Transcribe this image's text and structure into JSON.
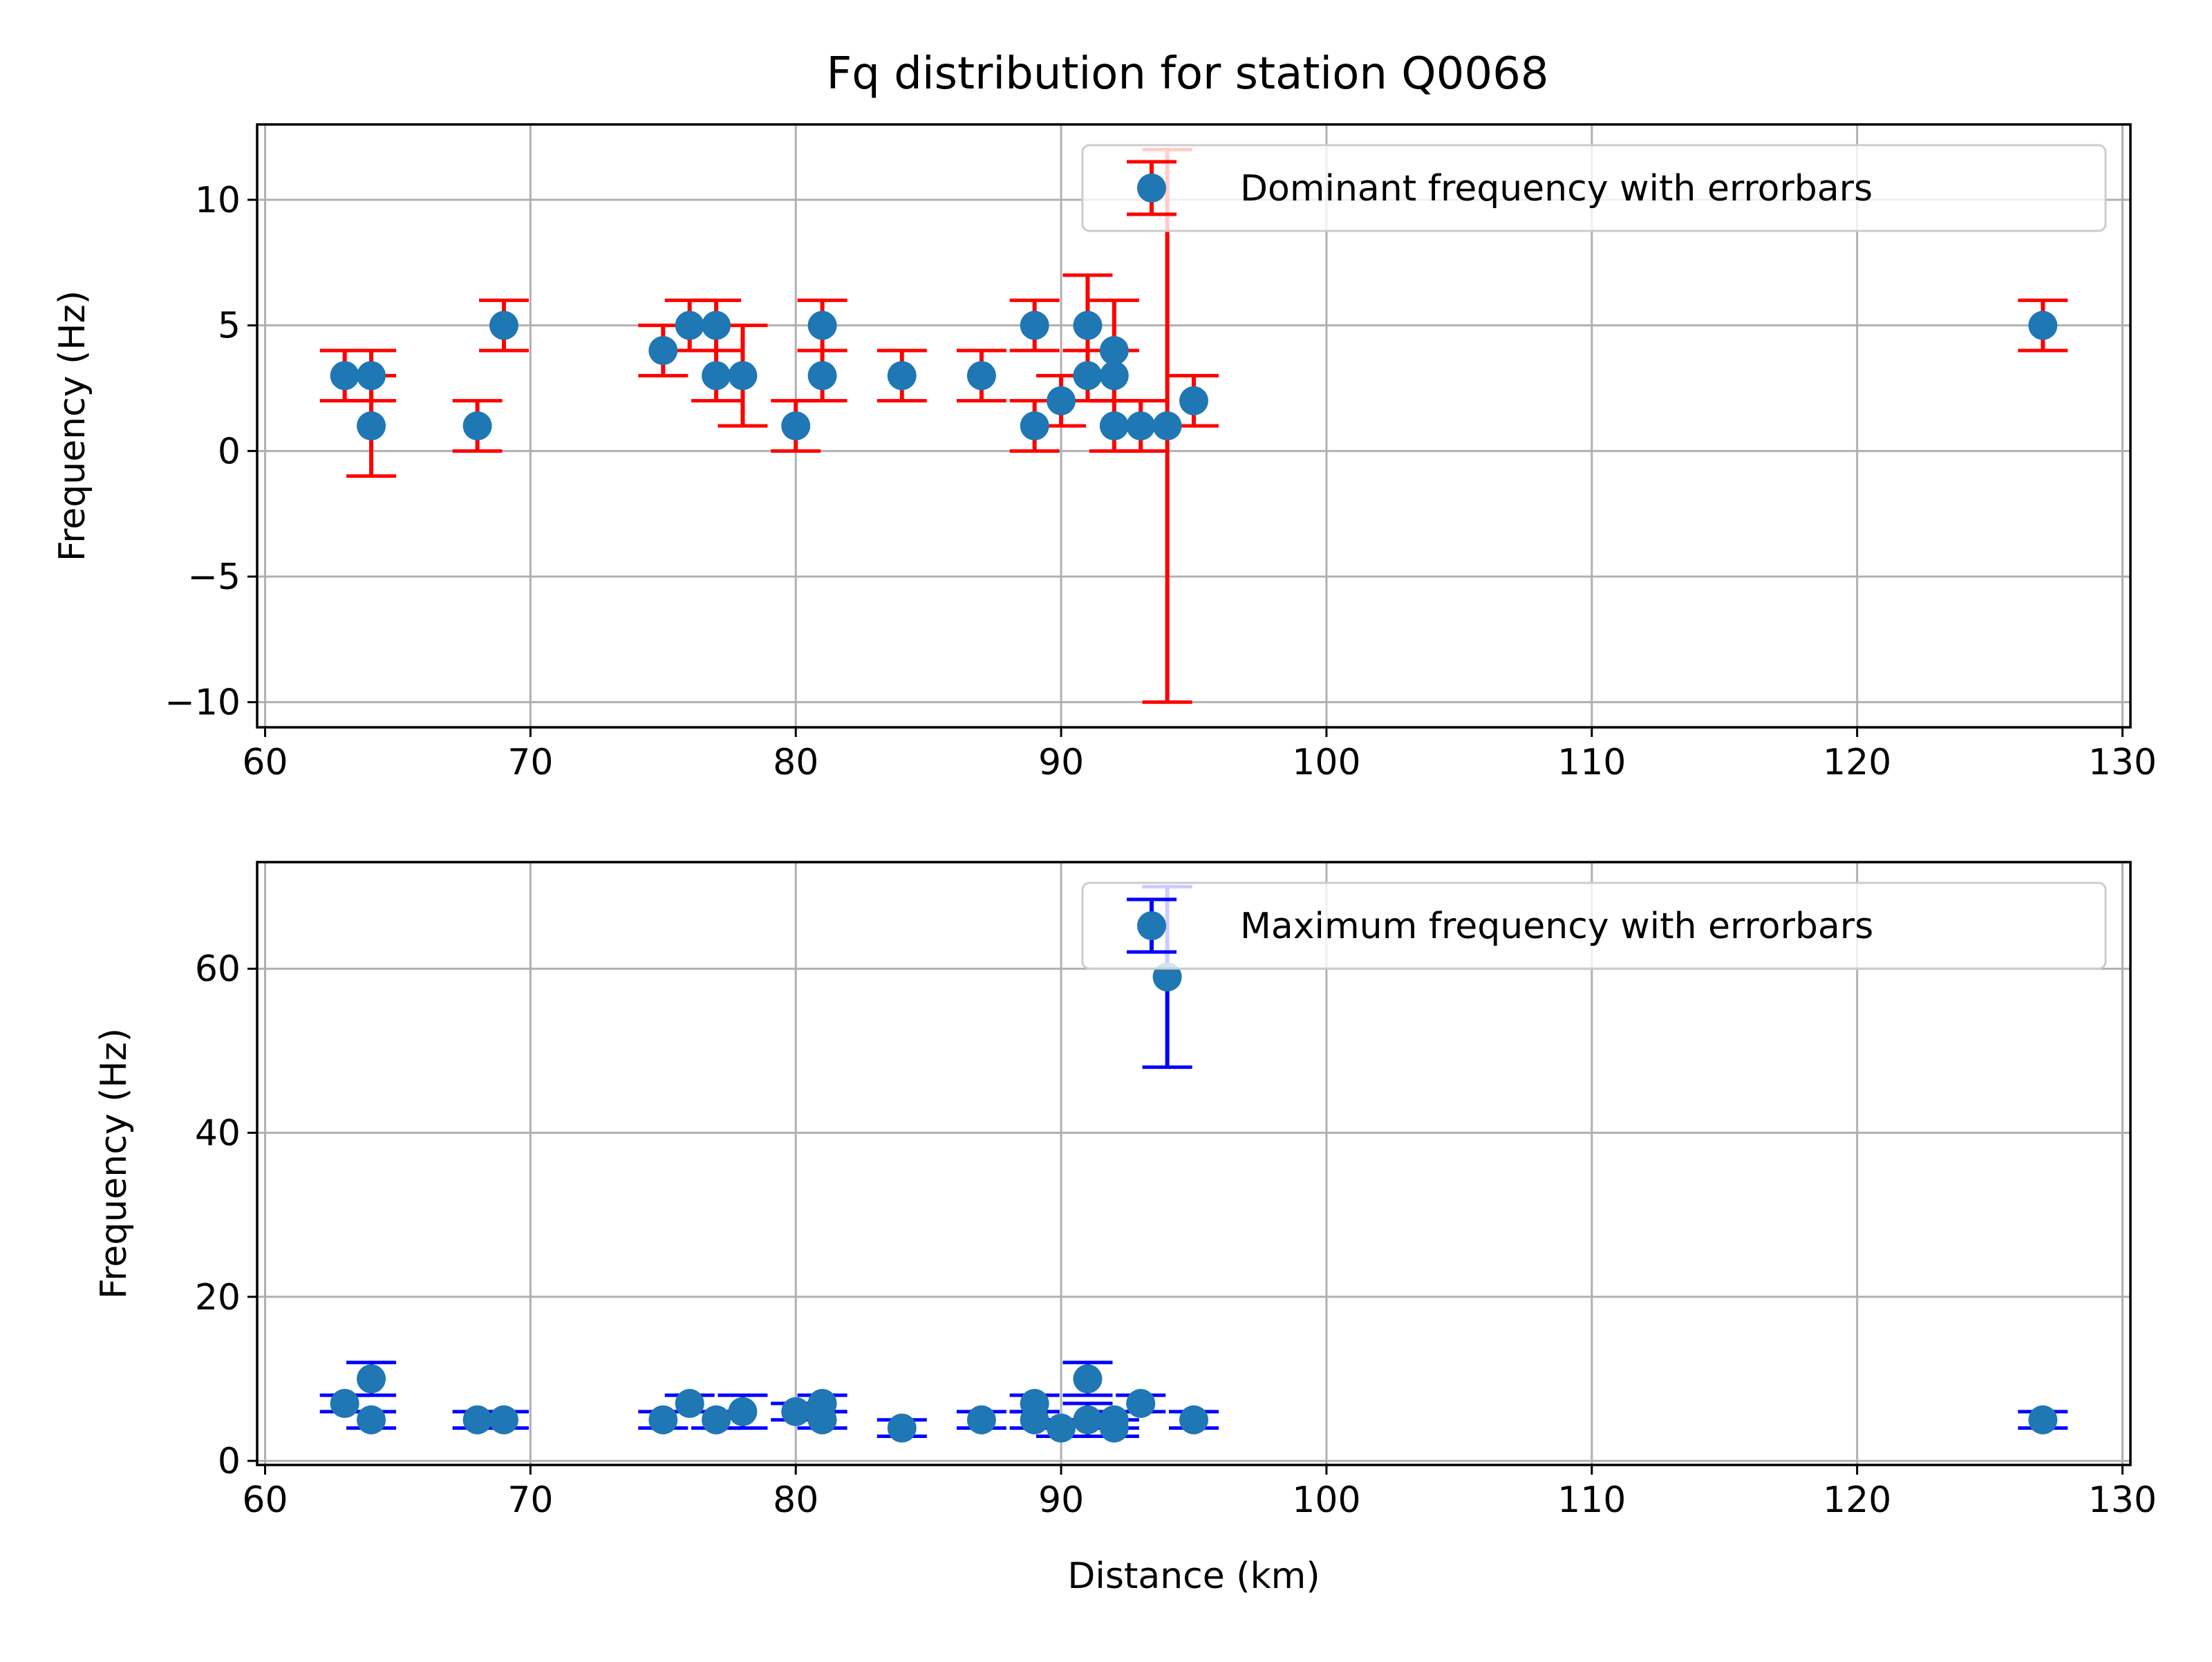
{
  "figure": {
    "title": "Fq distribution for station Q0068"
  },
  "chart_data": [
    {
      "type": "scatter",
      "subtype": "errorbar",
      "ylabel": "Frequency (Hz)",
      "xlabel": "",
      "xlim": [
        59.7,
        130.3
      ],
      "ylim": [
        -11.0,
        13.0
      ],
      "xticks": [
        60,
        70,
        80,
        90,
        100,
        110,
        120,
        130
      ],
      "yticks": [
        -10,
        -5,
        0,
        5,
        10
      ],
      "ytick_labels": [
        "−10",
        "−5",
        "0",
        "5",
        "10"
      ],
      "grid": true,
      "legend_position": "top-right",
      "marker_color": "#1f77b4",
      "errorbar_color": "#ff0000",
      "series": [
        {
          "name": "Dominant frequency with errorbars",
          "points": [
            {
              "x": 63,
              "y": 3,
              "ylow": 2,
              "yhigh": 4
            },
            {
              "x": 64,
              "y": 3,
              "ylow": 2,
              "yhigh": 4
            },
            {
              "x": 64,
              "y": 1,
              "ylow": -1,
              "yhigh": 3
            },
            {
              "x": 68,
              "y": 1,
              "ylow": 0,
              "yhigh": 2
            },
            {
              "x": 69,
              "y": 5,
              "ylow": 4,
              "yhigh": 6
            },
            {
              "x": 75,
              "y": 4,
              "ylow": 3,
              "yhigh": 5
            },
            {
              "x": 76,
              "y": 5,
              "ylow": 4,
              "yhigh": 6
            },
            {
              "x": 77,
              "y": 5,
              "ylow": 4,
              "yhigh": 6
            },
            {
              "x": 77,
              "y": 3,
              "ylow": 2,
              "yhigh": 4
            },
            {
              "x": 78,
              "y": 3,
              "ylow": 1,
              "yhigh": 5
            },
            {
              "x": 80,
              "y": 1,
              "ylow": 0,
              "yhigh": 2
            },
            {
              "x": 81,
              "y": 5,
              "ylow": 4,
              "yhigh": 6
            },
            {
              "x": 81,
              "y": 3,
              "ylow": 2,
              "yhigh": 4
            },
            {
              "x": 84,
              "y": 3,
              "ylow": 2,
              "yhigh": 4
            },
            {
              "x": 87,
              "y": 3,
              "ylow": 2,
              "yhigh": 4
            },
            {
              "x": 89,
              "y": 5,
              "ylow": 4,
              "yhigh": 6
            },
            {
              "x": 89,
              "y": 1,
              "ylow": 0,
              "yhigh": 2
            },
            {
              "x": 90,
              "y": 2,
              "ylow": 1,
              "yhigh": 3
            },
            {
              "x": 91,
              "y": 5,
              "ylow": 3,
              "yhigh": 7
            },
            {
              "x": 91,
              "y": 3,
              "ylow": 2,
              "yhigh": 4
            },
            {
              "x": 92,
              "y": 4,
              "ylow": 2,
              "yhigh": 6
            },
            {
              "x": 92,
              "y": 3,
              "ylow": 2,
              "yhigh": 4
            },
            {
              "x": 92,
              "y": 1,
              "ylow": 0,
              "yhigh": 2
            },
            {
              "x": 93,
              "y": 1,
              "ylow": 0,
              "yhigh": 2
            },
            {
              "x": 94,
              "y": 1,
              "ylow": -10,
              "yhigh": 12
            },
            {
              "x": 95,
              "y": 2,
              "ylow": 1,
              "yhigh": 3
            },
            {
              "x": 127,
              "y": 5,
              "ylow": 4,
              "yhigh": 6
            }
          ]
        }
      ]
    },
    {
      "type": "scatter",
      "subtype": "errorbar",
      "ylabel": "Frequency (Hz)",
      "xlabel": "Distance (km)",
      "xlim": [
        59.7,
        130.3
      ],
      "ylim": [
        -0.5,
        73.0
      ],
      "xticks": [
        60,
        70,
        80,
        90,
        100,
        110,
        120,
        130
      ],
      "yticks": [
        0,
        20,
        40,
        60
      ],
      "ytick_labels": [
        "0",
        "20",
        "40",
        "60"
      ],
      "grid": true,
      "legend_position": "top-right",
      "marker_color": "#1f77b4",
      "errorbar_color": "#0000ff",
      "series": [
        {
          "name": "Maximum frequency with errorbars",
          "points": [
            {
              "x": 63,
              "y": 7,
              "ylow": 6,
              "yhigh": 8
            },
            {
              "x": 64,
              "y": 10,
              "ylow": 8,
              "yhigh": 12
            },
            {
              "x": 64,
              "y": 5,
              "ylow": 4,
              "yhigh": 6
            },
            {
              "x": 68,
              "y": 5,
              "ylow": 4,
              "yhigh": 6
            },
            {
              "x": 69,
              "y": 5,
              "ylow": 4,
              "yhigh": 6
            },
            {
              "x": 75,
              "y": 5,
              "ylow": 4,
              "yhigh": 6
            },
            {
              "x": 76,
              "y": 7,
              "ylow": 6,
              "yhigh": 8
            },
            {
              "x": 77,
              "y": 5,
              "ylow": 4,
              "yhigh": 6
            },
            {
              "x": 78,
              "y": 6,
              "ylow": 4,
              "yhigh": 8
            },
            {
              "x": 80,
              "y": 6,
              "ylow": 5,
              "yhigh": 7
            },
            {
              "x": 81,
              "y": 7,
              "ylow": 6,
              "yhigh": 8
            },
            {
              "x": 81,
              "y": 5,
              "ylow": 4,
              "yhigh": 6
            },
            {
              "x": 84,
              "y": 4,
              "ylow": 3,
              "yhigh": 5
            },
            {
              "x": 87,
              "y": 5,
              "ylow": 4,
              "yhigh": 6
            },
            {
              "x": 89,
              "y": 7,
              "ylow": 6,
              "yhigh": 8
            },
            {
              "x": 89,
              "y": 5,
              "ylow": 4,
              "yhigh": 6
            },
            {
              "x": 90,
              "y": 4,
              "ylow": 3,
              "yhigh": 5
            },
            {
              "x": 91,
              "y": 10,
              "ylow": 8,
              "yhigh": 12
            },
            {
              "x": 91,
              "y": 5,
              "ylow": 3,
              "yhigh": 7
            },
            {
              "x": 92,
              "y": 5,
              "ylow": 4,
              "yhigh": 6
            },
            {
              "x": 92,
              "y": 4,
              "ylow": 3,
              "yhigh": 5
            },
            {
              "x": 93,
              "y": 7,
              "ylow": 6,
              "yhigh": 8
            },
            {
              "x": 94,
              "y": 59,
              "ylow": 48,
              "yhigh": 70
            },
            {
              "x": 95,
              "y": 5,
              "ylow": 4,
              "yhigh": 6
            },
            {
              "x": 127,
              "y": 5,
              "ylow": 4,
              "yhigh": 6
            }
          ]
        }
      ]
    }
  ]
}
